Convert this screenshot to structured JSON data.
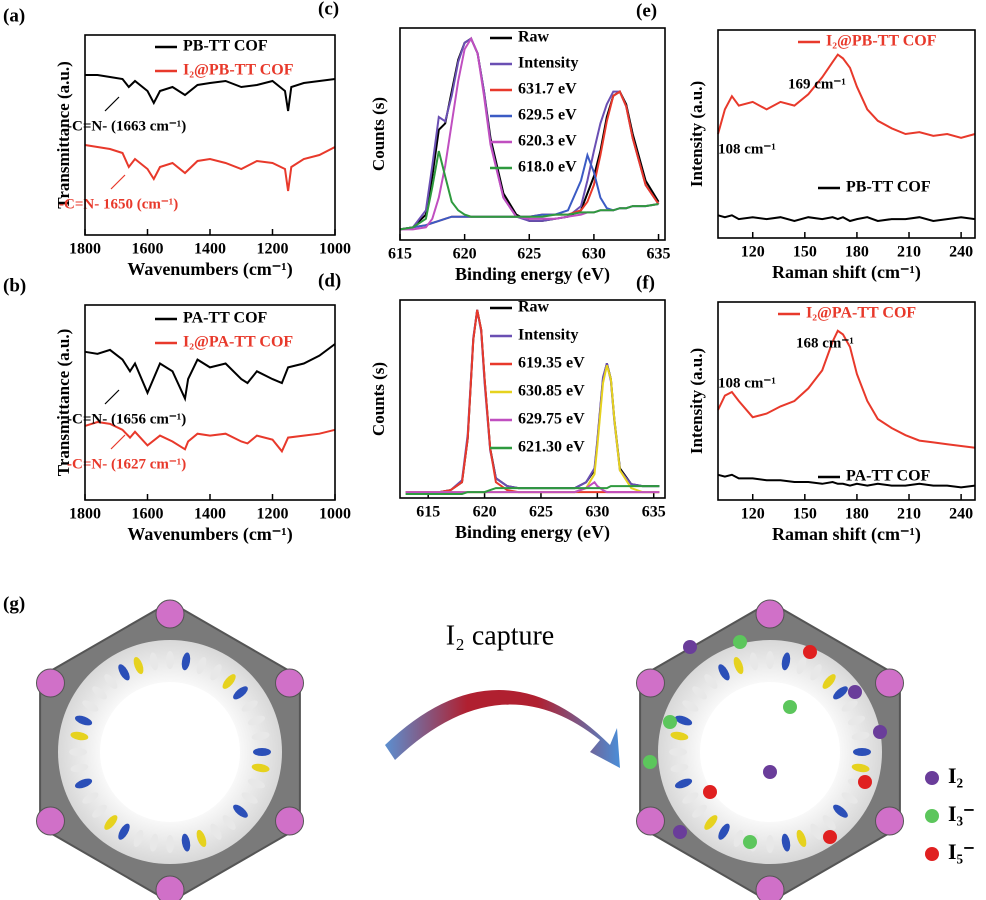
{
  "chart_data": [
    {
      "type": "line",
      "label": "(a)",
      "xlabel": "Wavenumbers (cm⁻¹)",
      "ylabel": "Transmittance (a.u.)",
      "xlim": [
        1800,
        1000
      ],
      "xticks": [
        1800,
        1600,
        1400,
        1200,
        1000
      ],
      "ylim": [
        0,
        100
      ],
      "x": [
        1800,
        1760,
        1720,
        1680,
        1660,
        1640,
        1600,
        1580,
        1560,
        1520,
        1480,
        1440,
        1400,
        1350,
        1300,
        1250,
        1200,
        1160,
        1150,
        1140,
        1100,
        1050,
        1000
      ],
      "series": [
        {
          "name": "PB-TT COF",
          "color": "#000000",
          "values": [
            80,
            80,
            79,
            78,
            74,
            77,
            72,
            66,
            72,
            74,
            70,
            75,
            76,
            77,
            74,
            75,
            77,
            72,
            62,
            74,
            76,
            77,
            78
          ]
        },
        {
          "name": "I₂@PB-TT COF",
          "color": "#e8392b",
          "values": [
            45,
            44,
            43,
            41,
            34,
            38,
            33,
            28,
            34,
            36,
            31,
            37,
            38,
            36,
            33,
            37,
            36,
            33,
            22,
            34,
            38,
            40,
            44
          ]
        }
      ],
      "annotations": [
        {
          "text": "-C=N- (1663 cm⁻¹)",
          "color": "#000000"
        },
        {
          "text": "-C=N- 1650 (cm⁻¹)",
          "color": "#e8392b"
        }
      ]
    },
    {
      "type": "line",
      "label": "(b)",
      "xlabel": "Wavenumbers (cm⁻¹)",
      "ylabel": "Transmittance (a.u.)",
      "xlim": [
        1800,
        1000
      ],
      "xticks": [
        1800,
        1600,
        1400,
        1200,
        1000
      ],
      "ylim": [
        0,
        100
      ],
      "x": [
        1800,
        1760,
        1720,
        1680,
        1656,
        1640,
        1600,
        1560,
        1520,
        1480,
        1470,
        1440,
        1400,
        1350,
        1300,
        1280,
        1250,
        1200,
        1170,
        1150,
        1100,
        1050,
        1000
      ],
      "series": [
        {
          "name": "PA-TT COF",
          "color": "#000000",
          "values": [
            76,
            75,
            77,
            72,
            66,
            70,
            55,
            70,
            66,
            52,
            62,
            72,
            68,
            70,
            62,
            60,
            66,
            62,
            60,
            68,
            70,
            74,
            80
          ]
        },
        {
          "name": "I₂@PA-TT COF",
          "color": "#e8392b",
          "values": [
            38,
            40,
            39,
            36,
            32,
            35,
            28,
            33,
            30,
            26,
            30,
            34,
            33,
            34,
            30,
            29,
            33,
            31,
            25,
            32,
            33,
            34,
            36
          ]
        }
      ],
      "annotations": [
        {
          "text": "-C=N- (1656 cm⁻¹)",
          "color": "#000000"
        },
        {
          "text": "-C=N- (1627 cm⁻¹)",
          "color": "#e8392b"
        }
      ]
    },
    {
      "type": "line",
      "label": "(c)",
      "xlabel": "Binding energy (eV)",
      "ylabel": "Counts (s)",
      "xlim": [
        615,
        635.5
      ],
      "xticks": [
        615,
        620,
        625,
        630,
        635
      ],
      "ylim": [
        0,
        100
      ],
      "x": [
        615,
        616,
        617,
        617.5,
        618,
        618.5,
        619,
        619.5,
        620,
        620.5,
        621,
        621.5,
        622,
        623,
        624,
        625,
        626,
        627,
        628,
        629,
        629.5,
        630,
        630.5,
        631,
        631.5,
        632,
        632.5,
        633,
        634,
        635
      ],
      "series": [
        {
          "name": "Raw",
          "color": "#000000",
          "values": [
            5,
            6,
            12,
            30,
            52,
            55,
            70,
            85,
            93,
            95,
            88,
            70,
            48,
            22,
            12,
            9,
            9,
            10,
            11,
            14,
            22,
            30,
            42,
            58,
            68,
            70,
            64,
            50,
            28,
            18
          ]
        },
        {
          "name": "Intensity",
          "color": "#6a4fb3",
          "values": [
            5,
            6,
            14,
            35,
            58,
            56,
            68,
            84,
            93,
            95,
            88,
            70,
            46,
            20,
            11,
            9,
            9,
            10,
            11,
            16,
            28,
            42,
            55,
            64,
            70,
            70,
            63,
            48,
            26,
            17
          ]
        },
        {
          "name": "631.7 eV",
          "color": "#e8392b",
          "values": [
            5,
            6,
            7,
            8,
            9,
            10,
            11,
            11,
            11,
            11,
            11,
            11,
            11,
            11,
            11,
            11,
            12,
            12,
            12,
            14,
            18,
            26,
            40,
            56,
            68,
            70,
            63,
            48,
            26,
            17
          ]
        },
        {
          "name": "629.5 eV",
          "color": "#3b5bc4",
          "values": [
            5,
            6,
            7,
            8,
            9,
            10,
            11,
            11,
            11,
            11,
            11,
            11,
            11,
            11,
            11,
            11,
            12,
            12,
            14,
            28,
            40,
            32,
            20,
            15,
            14,
            15,
            15,
            16,
            16,
            17
          ]
        },
        {
          "name": "620.3 eV",
          "color": "#c04fc0",
          "values": [
            5,
            5,
            6,
            10,
            20,
            35,
            55,
            75,
            90,
            95,
            88,
            68,
            45,
            20,
            11,
            10,
            10,
            10,
            11,
            12,
            13,
            13,
            14,
            14,
            14,
            15,
            15,
            16,
            16,
            17
          ]
        },
        {
          "name": "618.0 eV",
          "color": "#2e9a3e",
          "values": [
            5,
            6,
            10,
            25,
            42,
            30,
            18,
            14,
            12,
            11,
            11,
            11,
            11,
            11,
            11,
            11,
            11,
            12,
            12,
            13,
            13,
            13,
            14,
            14,
            14,
            15,
            15,
            16,
            16,
            17
          ]
        }
      ]
    },
    {
      "type": "line",
      "label": "(d)",
      "xlabel": "Binding energy (eV)",
      "ylabel": "Counts (s)",
      "xlim": [
        612.5,
        636
      ],
      "xticks": [
        615,
        620,
        625,
        630,
        635
      ],
      "ylim": [
        0,
        100
      ],
      "x": [
        613,
        615,
        616,
        617,
        618,
        618.5,
        619,
        619.35,
        619.7,
        620,
        620.5,
        621,
        622,
        623,
        624,
        625,
        626,
        627,
        628,
        629,
        629.75,
        630,
        630.5,
        630.85,
        631.2,
        631.5,
        632,
        633,
        634,
        635.5
      ],
      "series": [
        {
          "name": "Raw",
          "color": "#000000",
          "values": [
            3,
            3,
            3,
            4,
            8,
            30,
            80,
            95,
            85,
            60,
            25,
            10,
            6,
            5,
            5,
            5,
            5,
            5,
            5,
            8,
            14,
            28,
            60,
            68,
            60,
            40,
            15,
            7,
            6,
            6
          ]
        },
        {
          "name": "Intensity",
          "color": "#6a4fb3",
          "values": [
            3,
            3,
            3,
            4,
            9,
            32,
            81,
            95,
            84,
            58,
            24,
            10,
            6,
            5,
            5,
            5,
            5,
            5,
            5,
            8,
            15,
            29,
            61,
            68,
            59,
            39,
            14,
            7,
            6,
            6
          ]
        },
        {
          "name": "619.35 eV",
          "color": "#e8392b",
          "values": [
            3,
            3,
            3,
            4,
            8,
            30,
            80,
            95,
            85,
            60,
            25,
            8,
            4,
            3,
            3,
            3,
            3,
            3,
            3,
            3,
            3,
            3,
            3,
            3,
            3,
            3,
            3,
            3,
            3,
            3
          ]
        },
        {
          "name": "630.85 eV",
          "color": "#e6d21e",
          "values": [
            3,
            3,
            3,
            3,
            3,
            3,
            3,
            3,
            3,
            3,
            3,
            3,
            3,
            3,
            3,
            3,
            3,
            3,
            3,
            5,
            12,
            26,
            58,
            67,
            60,
            40,
            14,
            5,
            3,
            3
          ]
        },
        {
          "name": "629.75 eV",
          "color": "#c04fc0",
          "values": [
            3,
            3,
            3,
            3,
            3,
            3,
            3,
            3,
            3,
            3,
            3,
            3,
            3,
            3,
            3,
            3,
            3,
            3,
            3,
            5,
            8,
            6,
            4,
            3,
            3,
            3,
            3,
            3,
            3,
            3
          ]
        },
        {
          "name": "621.30 eV",
          "color": "#2e9a3e",
          "values": [
            2,
            2,
            2,
            2,
            2,
            3,
            3,
            3,
            3,
            3,
            4,
            5,
            5,
            5,
            5,
            5,
            5,
            5,
            5,
            5,
            5,
            5,
            5,
            5,
            6,
            6,
            6,
            6,
            6,
            6
          ]
        }
      ]
    },
    {
      "type": "line",
      "label": "(e)",
      "xlabel": "Raman shift (cm⁻¹)",
      "ylabel": "Intensity (a.u.)",
      "xlim": [
        100,
        248
      ],
      "xticks": [
        120,
        150,
        180,
        210,
        240
      ],
      "ylim": [
        0,
        110
      ],
      "x": [
        100,
        104,
        108,
        112,
        120,
        128,
        136,
        144,
        152,
        160,
        166,
        169,
        172,
        176,
        180,
        186,
        192,
        200,
        208,
        216,
        224,
        232,
        240,
        248
      ],
      "series": [
        {
          "name": "I₂@PB-TT COF",
          "color": "#e8392b",
          "values": [
            55,
            68,
            75,
            70,
            72,
            68,
            72,
            70,
            76,
            85,
            93,
            97,
            95,
            90,
            80,
            68,
            62,
            58,
            55,
            56,
            54,
            55,
            53,
            55
          ]
        },
        {
          "name": "PB-TT COF",
          "color": "#000000",
          "values": [
            12,
            11,
            12,
            10,
            11,
            10,
            11,
            9,
            11,
            10,
            11,
            10,
            11,
            9,
            10,
            11,
            9,
            10,
            10,
            11,
            9,
            10,
            11,
            10
          ]
        }
      ],
      "annotations": [
        {
          "text": "108 cm⁻¹",
          "color": "#000000"
        },
        {
          "text": "169 cm⁻¹",
          "color": "#000000"
        }
      ]
    },
    {
      "type": "line",
      "label": "(f)",
      "xlabel": "Raman shift (cm⁻¹)",
      "ylabel": "Intensity (a.u.)",
      "xlim": [
        100,
        248
      ],
      "xticks": [
        120,
        150,
        180,
        210,
        240
      ],
      "ylim": [
        0,
        110
      ],
      "x": [
        100,
        104,
        108,
        112,
        120,
        128,
        136,
        144,
        152,
        160,
        166,
        169,
        172,
        176,
        180,
        186,
        192,
        200,
        208,
        216,
        224,
        232,
        240,
        248
      ],
      "series": [
        {
          "name": "I₂@PA-TT COF",
          "color": "#e8392b",
          "values": [
            50,
            58,
            60,
            55,
            46,
            48,
            52,
            55,
            62,
            72,
            88,
            94,
            92,
            85,
            70,
            55,
            45,
            40,
            36,
            33,
            32,
            31,
            30,
            29
          ]
        },
        {
          "name": "PA-TT COF",
          "color": "#000000",
          "values": [
            14,
            13,
            14,
            12,
            12,
            11,
            11,
            10,
            10,
            9,
            10,
            9,
            9,
            8,
            9,
            8,
            9,
            8,
            8,
            9,
            8,
            8,
            7,
            8
          ]
        }
      ],
      "annotations": [
        {
          "text": "108 cm⁻¹",
          "color": "#000000"
        },
        {
          "text": "168 cm⁻¹",
          "color": "#000000"
        }
      ]
    }
  ],
  "diagram": {
    "label": "(g)",
    "arrow_label": "I₂ capture",
    "legend": [
      {
        "name": "I₂",
        "color": "#6a3d9a"
      },
      {
        "name": "I₃⁻",
        "color": "#5cc65c"
      },
      {
        "name": "I₅⁻",
        "color": "#e02020"
      }
    ]
  }
}
